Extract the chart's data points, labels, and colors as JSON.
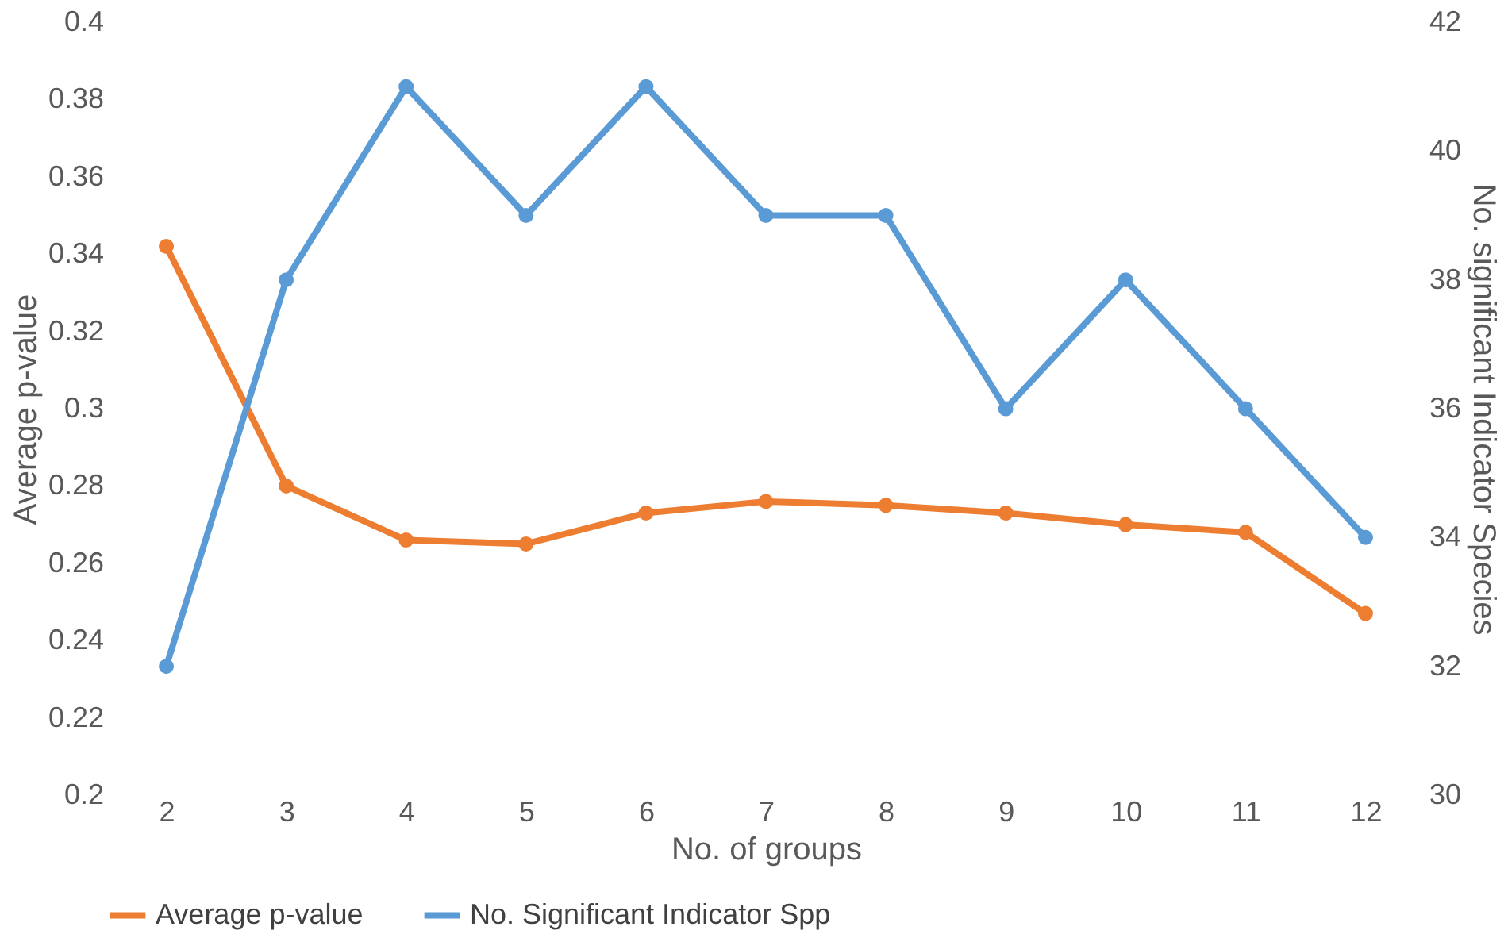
{
  "chart_data": {
    "type": "line",
    "xlabel": "No. of groups",
    "ylabel": "Average p-value",
    "y2label": "No. significant Indicator Species",
    "categories": [
      "2",
      "3",
      "4",
      "5",
      "6",
      "7",
      "8",
      "9",
      "10",
      "11",
      "12"
    ],
    "series": [
      {
        "name": "Average p-value",
        "color": "#ed7d31",
        "values": [
          0.342,
          0.28,
          0.266,
          0.265,
          0.273,
          0.276,
          0.275,
          0.273,
          0.27,
          0.268,
          0.247
        ]
      },
      {
        "name": "No. Significant Indicator Spp",
        "color": "#5b9bd5",
        "axis": "y2",
        "values": [
          32,
          38,
          41,
          39,
          41,
          39,
          39,
          36,
          38,
          36,
          34
        ]
      }
    ],
    "ylim": [
      0.2,
      0.4
    ],
    "yticks": [
      0.2,
      0.22,
      0.24,
      0.26,
      0.28,
      0.3,
      0.32,
      0.34,
      0.36,
      0.38,
      0.4
    ],
    "y2lim": [
      30,
      42
    ],
    "y2ticks": [
      30,
      32,
      34,
      36,
      38,
      40,
      42
    ],
    "grid": false,
    "legend": "bottom",
    "marker": "circle",
    "line_style": "solid"
  }
}
